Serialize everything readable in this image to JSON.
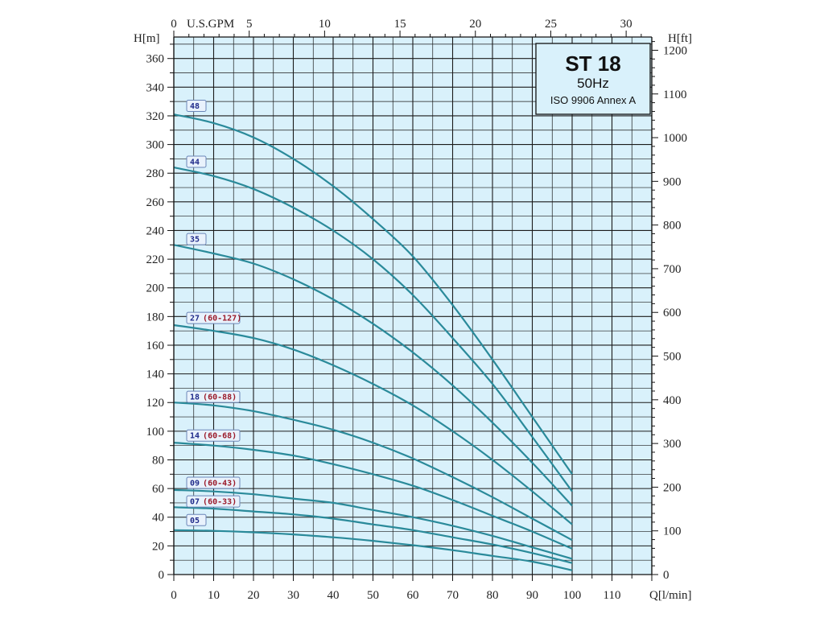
{
  "chart_data": {
    "type": "line",
    "title": "ST 18",
    "subtitle": "50Hz",
    "subtitle2": "ISO 9906 Annex A",
    "xlabel": "Q[l/min]",
    "ylabel_left": "H[m]",
    "ylabel_right": "H[ft]",
    "xlabel_top": "U.S.GPM",
    "xlim": [
      0,
      120
    ],
    "ylim": [
      0,
      375
    ],
    "x_ticks": [
      0,
      10,
      20,
      30,
      40,
      50,
      60,
      70,
      80,
      90,
      100,
      110
    ],
    "y_ticks": [
      0,
      20,
      40,
      60,
      80,
      100,
      120,
      140,
      160,
      180,
      200,
      220,
      240,
      260,
      280,
      300,
      320,
      340,
      360
    ],
    "y_ticks_ft": [
      0,
      100,
      200,
      300,
      400,
      500,
      600,
      700,
      800,
      900,
      1000,
      1100,
      1200
    ],
    "x_ticks_gpm": [
      0,
      5,
      10,
      15,
      20,
      25,
      30
    ],
    "grid": true,
    "series": [
      {
        "name": "48",
        "range": "",
        "x": [
          0,
          10,
          20,
          30,
          40,
          50,
          60,
          70,
          80,
          90,
          100
        ],
        "y": [
          321,
          315,
          305,
          290,
          271,
          248,
          222,
          188,
          150,
          110,
          70
        ]
      },
      {
        "name": "44",
        "range": "",
        "x": [
          0,
          10,
          20,
          30,
          40,
          50,
          60,
          70,
          80,
          90,
          100
        ],
        "y": [
          284,
          278,
          269,
          256,
          240,
          220,
          195,
          165,
          133,
          96,
          58
        ]
      },
      {
        "name": "35",
        "range": "",
        "x": [
          0,
          10,
          20,
          30,
          40,
          50,
          60,
          70,
          80,
          90,
          100
        ],
        "y": [
          230,
          224,
          217,
          206,
          192,
          175,
          155,
          132,
          106,
          78,
          48
        ]
      },
      {
        "name": "27",
        "range": "(60-127)",
        "x": [
          0,
          10,
          20,
          30,
          40,
          50,
          60,
          70,
          80,
          90,
          100
        ],
        "y": [
          174,
          170,
          165,
          157,
          146,
          133,
          118,
          100,
          80,
          58,
          35
        ]
      },
      {
        "name": "18",
        "range": "(60-88)",
        "x": [
          0,
          10,
          20,
          30,
          40,
          50,
          60,
          70,
          80,
          90,
          100
        ],
        "y": [
          120,
          118,
          114,
          108,
          101,
          92,
          81,
          68,
          54,
          39,
          24
        ]
      },
      {
        "name": "14",
        "range": "(60-68)",
        "x": [
          0,
          10,
          20,
          30,
          40,
          50,
          60,
          70,
          80,
          90,
          100
        ],
        "y": [
          92,
          90,
          87,
          83,
          77,
          70,
          62,
          52,
          41,
          30,
          18
        ]
      },
      {
        "name": "09",
        "range": "(60-43)",
        "x": [
          0,
          10,
          20,
          30,
          40,
          50,
          60,
          70,
          80,
          90,
          100
        ],
        "y": [
          59,
          58,
          56,
          53,
          50,
          45,
          40,
          34,
          27,
          19,
          11
        ]
      },
      {
        "name": "07",
        "range": "(60-33)",
        "x": [
          0,
          10,
          20,
          30,
          40,
          50,
          60,
          70,
          80,
          90,
          100
        ],
        "y": [
          47,
          46,
          44,
          42,
          39,
          35,
          31,
          26,
          21,
          15,
          8
        ]
      },
      {
        "name": "05",
        "range": "",
        "x": [
          0,
          10,
          20,
          30,
          40,
          50,
          60,
          70,
          80,
          90,
          100
        ],
        "y": [
          31,
          30.5,
          29.5,
          28,
          26,
          23.5,
          20.5,
          17,
          13,
          9,
          3
        ]
      }
    ],
    "label_y": [
      327,
      288,
      234,
      179,
      124,
      97,
      64,
      51,
      38
    ],
    "colors": {
      "background": "#d9f1fb",
      "grid": "#1b1b1b",
      "curve": "#2a8a9a",
      "label_fill": "#e9f2fc",
      "label_stroke": "#6a86b8"
    }
  }
}
